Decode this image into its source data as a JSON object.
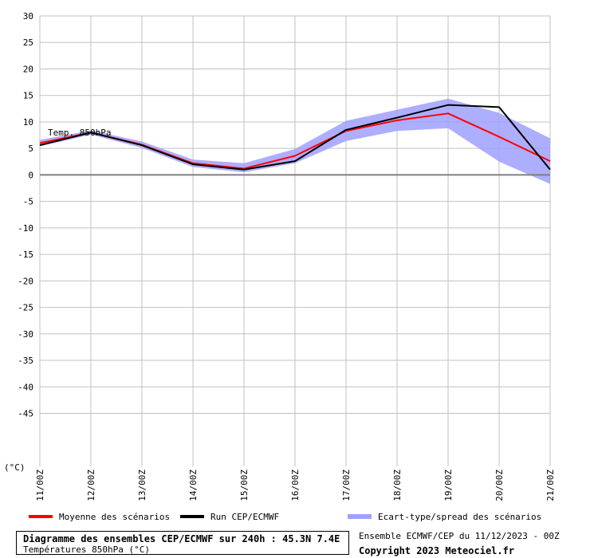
{
  "chart_data": {
    "type": "line",
    "title": "Diagramme des ensembles CEP/ECMWF sur 240h : 45.3N 7.4E",
    "subtitle": "Températures 850hPa (°C)",
    "unit_label": "(°C)",
    "annotation": "Temp. 850hPa",
    "x": [
      "11/00Z",
      "12/00Z",
      "13/00Z",
      "14/00Z",
      "15/00Z",
      "16/00Z",
      "17/00Z",
      "18/00Z",
      "19/00Z",
      "20/00Z",
      "21/00Z"
    ],
    "ylim": [
      -55,
      30
    ],
    "yticks": [
      30,
      25,
      20,
      15,
      10,
      5,
      0,
      -5,
      -10,
      -15,
      -20,
      -25,
      -30,
      -35,
      -40,
      -45
    ],
    "grid": true,
    "legend_position": "bottom",
    "series": [
      {
        "name": "Moyenne des scénarios",
        "color": "#ff0000",
        "values": [
          6.0,
          8.0,
          5.7,
          2.2,
          1.2,
          3.6,
          8.3,
          10.3,
          11.6,
          7.2,
          2.6
        ]
      },
      {
        "name": "Run CEP/ECMWF",
        "color": "#000000",
        "values": [
          5.6,
          8.0,
          5.6,
          2.0,
          1.0,
          2.6,
          8.5,
          10.8,
          13.2,
          12.8,
          1.0
        ]
      }
    ],
    "spread": {
      "name": "Ecart-type/spread des scénarios",
      "color": "#a0a0ff",
      "upper": [
        6.6,
        8.4,
        6.3,
        2.9,
        2.2,
        4.9,
        10.2,
        12.3,
        14.4,
        11.7,
        6.9
      ],
      "lower": [
        5.4,
        7.6,
        5.1,
        1.5,
        0.5,
        2.2,
        6.4,
        8.3,
        8.8,
        2.5,
        -1.7
      ]
    },
    "footer_right": {
      "run_info": "Ensemble ECMWF/CEP du 11/12/2023 - 00Z",
      "copyright": "Copyright 2023 Meteociel.fr"
    }
  }
}
